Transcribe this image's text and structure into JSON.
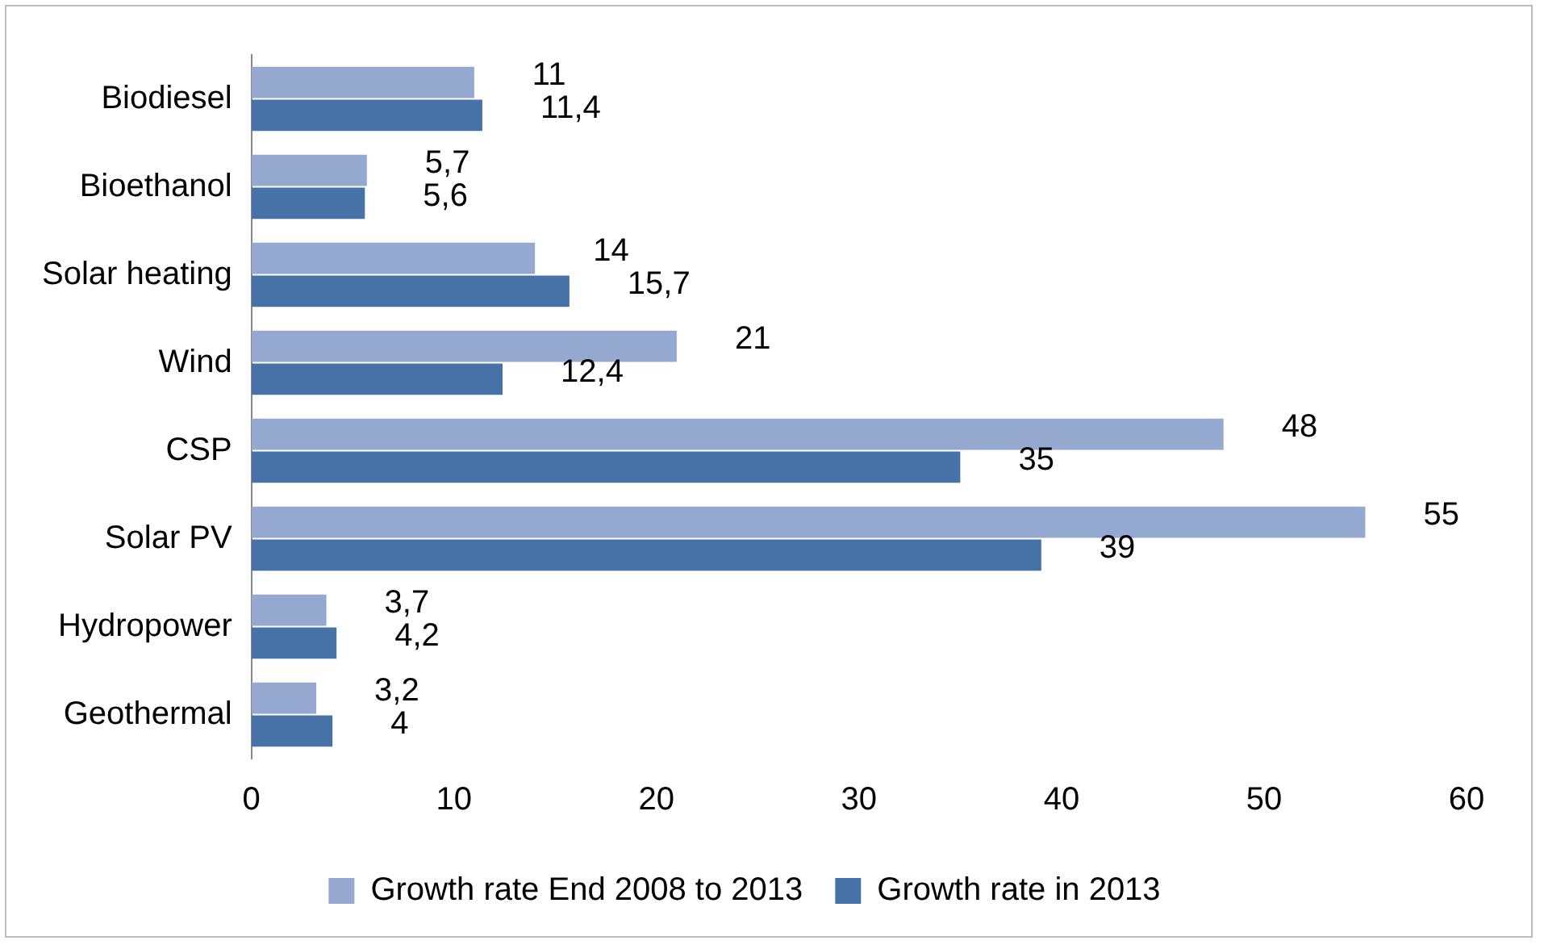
{
  "chart_data": {
    "type": "bar",
    "orientation": "horizontal",
    "categories": [
      "Biodiesel",
      "Bioethanol",
      "Solar heating",
      "Wind",
      "CSP",
      "Solar PV",
      "Hydropower",
      "Geothermal"
    ],
    "series": [
      {
        "name": "Growth rate End 2008 to 2013",
        "color": "#95a9d0",
        "values": [
          11,
          5.7,
          14,
          21,
          48,
          55,
          3.7,
          3.2
        ],
        "value_labels": [
          "11",
          "5,7",
          "14",
          "21",
          "48",
          "55",
          "3,7",
          "3,2"
        ]
      },
      {
        "name": "Growth rate in 2013",
        "color": "#4672a8",
        "values": [
          11.4,
          5.6,
          15.7,
          12.4,
          35,
          39,
          4.2,
          4
        ],
        "value_labels": [
          "11,4",
          "5,6",
          "15,7",
          "12,4",
          "35",
          "39",
          "4,2",
          "4"
        ]
      }
    ],
    "xlim": [
      0,
      60
    ],
    "xticks": [
      0,
      10,
      20,
      30,
      40,
      50,
      60
    ],
    "grid": false,
    "legend": "bottom"
  }
}
